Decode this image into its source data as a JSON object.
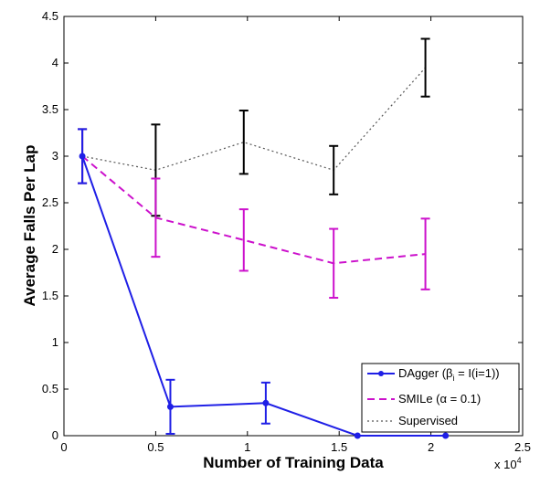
{
  "chart_data": {
    "type": "line",
    "xlabel": "Number of Training Data",
    "ylabel": "Average Falls Per Lap",
    "x_multiplier": "x 10",
    "x_multiplier_exp": "4",
    "xlim": [
      0,
      2.5
    ],
    "ylim": [
      0,
      4.5
    ],
    "xticks": [
      "0",
      "0.5",
      "1",
      "1.5",
      "2",
      "2.5"
    ],
    "yticks": [
      "0",
      "0.5",
      "1",
      "1.5",
      "2",
      "2.5",
      "3",
      "3.5",
      "4",
      "4.5"
    ],
    "grid": false,
    "legend_position": "bottom-right",
    "series": [
      {
        "name": "DAgger (β = I(i=1))",
        "legend_pre": "DAgger (β",
        "legend_sub": "i",
        "legend_post": " = I(i=1))",
        "color": "#1f1fe6",
        "style": "solid-marker",
        "x": [
          0.1,
          0.58,
          1.1,
          1.6,
          2.08
        ],
        "y": [
          3.0,
          0.31,
          0.35,
          0.0,
          0.0
        ],
        "err": [
          0.29,
          0.29,
          0.22,
          0.0,
          0.0
        ]
      },
      {
        "name": "SMILe (α = 0.1)",
        "legend_pre": "SMILe (α = 0.1)",
        "color": "#cc11cc",
        "style": "dashed",
        "x": [
          0.1,
          0.5,
          0.98,
          1.47,
          1.97
        ],
        "y": [
          3.0,
          2.34,
          2.1,
          1.85,
          1.95
        ],
        "err": [
          0.29,
          0.42,
          0.33,
          0.37,
          0.38
        ]
      },
      {
        "name": "Supervised",
        "legend_pre": "Supervised",
        "color": "#555555",
        "style": "dotted",
        "x": [
          0.1,
          0.5,
          0.98,
          1.47,
          1.97
        ],
        "y": [
          3.0,
          2.85,
          3.15,
          2.85,
          3.95
        ],
        "err": [
          0.29,
          0.49,
          0.34,
          0.26,
          0.31
        ],
        "err_color": "#000000"
      }
    ]
  }
}
